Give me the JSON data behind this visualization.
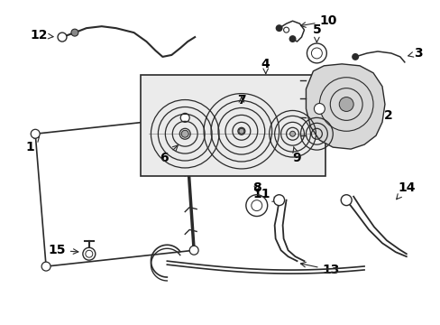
{
  "bg_color": "#ffffff",
  "line_color": "#2a2a2a",
  "label_color": "#000000",
  "font_size": 10,
  "dpi": 100,
  "figsize": [
    4.89,
    3.6
  ]
}
